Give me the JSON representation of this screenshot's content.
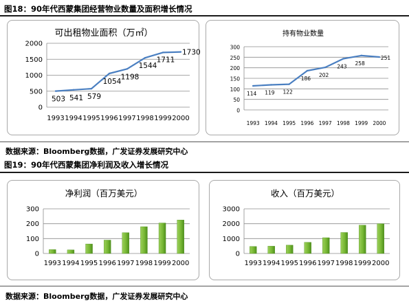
{
  "figure1": {
    "title": "图18：90年代西蒙集团经营物业数量及面积增长情况",
    "source": "数据来源：Bloomberg数据，广发证券发展研究中心"
  },
  "figure2": {
    "title": "图19：90年代西蒙集团净利润及收入增长情况",
    "source": "数据来源：Bloomberg数据，广发证券发展研究中心"
  },
  "chart_data": [
    {
      "type": "line",
      "title": "可出租物业面积（万㎡）",
      "categories": [
        "1993",
        "1994",
        "1995",
        "1996",
        "1997",
        "1998",
        "1999",
        "2000"
      ],
      "values": [
        503,
        541,
        579,
        1054,
        1198,
        1544,
        1711,
        1730
      ],
      "ylim": [
        0,
        2000
      ],
      "yticks": [
        0,
        500,
        1000,
        1500,
        2000
      ],
      "grid": true,
      "color": "#4a7fc1"
    },
    {
      "type": "line",
      "title": "持有物业数量",
      "categories": [
        "1993",
        "1994",
        "1995",
        "1996",
        "1997",
        "1998",
        "1999",
        "2000"
      ],
      "values": [
        114,
        119,
        122,
        186,
        202,
        243,
        258,
        251
      ],
      "ylim": [
        0,
        300
      ],
      "yticks": [
        0,
        50,
        100,
        150,
        200,
        250,
        300
      ],
      "grid": true,
      "color": "#4a7fc1"
    },
    {
      "type": "bar",
      "title": "净利润（百万美元）",
      "categories": [
        "1993",
        "1994",
        "1995",
        "1996",
        "1997",
        "1998",
        "1999",
        "2000"
      ],
      "values": [
        26,
        24,
        64,
        90,
        140,
        180,
        205,
        225
      ],
      "ylim": [
        0,
        300
      ],
      "yticks": [
        0,
        100,
        200,
        300
      ],
      "grid": true,
      "color": "#6aaa2a"
    },
    {
      "type": "bar",
      "title": "收入（百万美元）",
      "categories": [
        "1993",
        "1994",
        "1995",
        "1996",
        "1997",
        "1998",
        "1999",
        "2000"
      ],
      "values": [
        470,
        490,
        560,
        750,
        1060,
        1410,
        1900,
        2000
      ],
      "ylim": [
        0,
        3000
      ],
      "yticks": [
        0,
        1000,
        2000,
        3000
      ],
      "grid": true,
      "color": "#6aaa2a"
    }
  ]
}
